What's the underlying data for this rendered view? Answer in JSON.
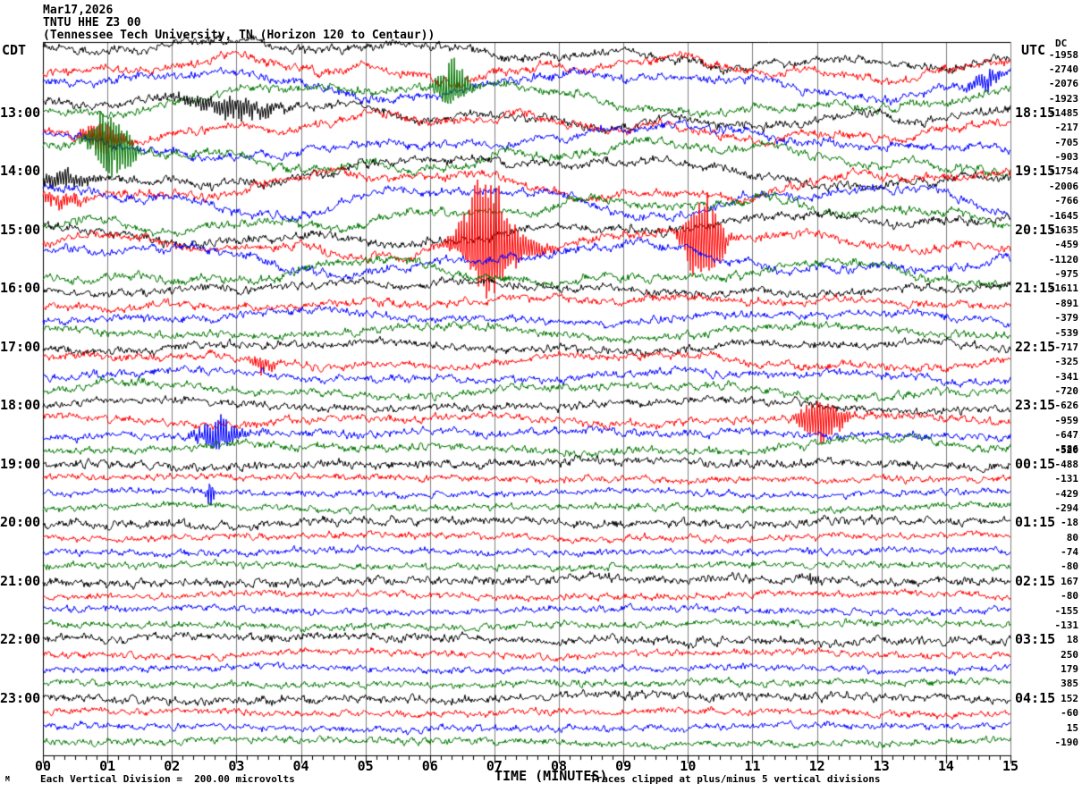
{
  "title": {
    "line1": "Mar17,2026",
    "line2": "TNTU HHE Z3 00",
    "line3": "(Tennessee Tech University, TN (Horizon 120 to Centaur))"
  },
  "axes": {
    "left_header": "CDT",
    "right_header": "UTC",
    "dc_header": "DC",
    "x_axis_label": "TIME (MINUTES)",
    "x_tick_labels": [
      "00",
      "01",
      "02",
      "03",
      "04",
      "05",
      "06",
      "07",
      "08",
      "09",
      "10",
      "11",
      "12",
      "13",
      "14",
      "15"
    ],
    "left_time_labels": [
      {
        "row": 4,
        "text": "13:00"
      },
      {
        "row": 8,
        "text": "14:00"
      },
      {
        "row": 12,
        "text": "15:00"
      },
      {
        "row": 16,
        "text": "16:00"
      },
      {
        "row": 20,
        "text": "17:00"
      },
      {
        "row": 24,
        "text": "18:00"
      },
      {
        "row": 28,
        "text": "19:00"
      },
      {
        "row": 32,
        "text": "20:00"
      },
      {
        "row": 36,
        "text": "21:00"
      },
      {
        "row": 40,
        "text": "22:00"
      },
      {
        "row": 44,
        "text": "23:00"
      }
    ],
    "right_time_labels": [
      {
        "row": 4,
        "text": "18:15"
      },
      {
        "row": 8,
        "text": "19:15"
      },
      {
        "row": 12,
        "text": "20:15"
      },
      {
        "row": 16,
        "text": "21:15"
      },
      {
        "row": 20,
        "text": "22:15"
      },
      {
        "row": 24,
        "text": "23:15"
      },
      {
        "row": 28,
        "text": "00:15"
      },
      {
        "row": 32,
        "text": "01:15"
      },
      {
        "row": 36,
        "text": "02:15"
      },
      {
        "row": 40,
        "text": "03:15"
      },
      {
        "row": 44,
        "text": "04:15"
      }
    ],
    "dc_labels": [
      "-1958",
      "-2740",
      "-2076",
      "-1923",
      "-1485",
      "-217",
      "-705",
      "-903",
      "-1754",
      "-2006",
      "-766",
      "-1645",
      "-1635",
      "-459",
      "-1120",
      "-975",
      "-1611",
      "-891",
      "-379",
      "-539",
      "-717",
      "-325",
      "-341",
      "-720",
      "-626",
      "-959",
      "-647",
      "-586",
      "-488",
      "-131",
      "-429",
      "-294",
      "-18",
      "80",
      "-74",
      "-80",
      "167",
      "-80",
      "-155",
      "-131",
      "18",
      "250",
      "179",
      "385",
      "152",
      "-60",
      "15",
      "-190"
    ],
    "dc_overprint": {
      "row": 27,
      "text": "-520"
    }
  },
  "footer": {
    "left": "Each Vertical Division =  200.00 microvolts",
    "right": "Traces clipped at plus/minus 5 vertical divisions",
    "corner_mark": "M"
  },
  "chart_data": {
    "type": "line",
    "subtype": "seismogram-helicorder",
    "title": "TNTU HHE Z3 00 — Mar17,2026",
    "xlabel": "TIME (MINUTES)",
    "x_range_minutes": [
      0,
      15
    ],
    "minor_ticks_per_minute": 6,
    "rows": 48,
    "row_duration_minutes": 15,
    "trace_color_cycle": [
      "#000000",
      "#ff0000",
      "#0000ff",
      "#007700"
    ],
    "grid_color": "#808080",
    "background": "#ffffff",
    "clip_divisions": 5,
    "microvolts_per_division": 200.0,
    "dc_offsets": [
      -1958,
      -2740,
      -2076,
      -1923,
      -1485,
      -217,
      -705,
      -903,
      -1754,
      -2006,
      -766,
      -1645,
      -1635,
      -459,
      -1120,
      -975,
      -1611,
      -891,
      -379,
      -539,
      -717,
      -325,
      -341,
      -720,
      -626,
      -959,
      -647,
      -586,
      -488,
      -131,
      -429,
      -294,
      -18,
      80,
      -74,
      -80,
      167,
      -80,
      -155,
      -131,
      18,
      250,
      179,
      385,
      152,
      -60,
      15,
      -190
    ],
    "noise_zones": [
      {
        "rows": [
          0,
          15
        ],
        "wander": 12,
        "noise": 2.4
      },
      {
        "rows": [
          16,
          23
        ],
        "wander": 5.5,
        "noise": 2.2
      },
      {
        "rows": [
          24,
          27
        ],
        "wander": 4,
        "noise": 2.2
      },
      {
        "rows": [
          28,
          47
        ],
        "wander": 2,
        "noise": 1.9,
        "black_noise": 2.4,
        "black_wander": 3
      }
    ],
    "events": [
      {
        "row": 2,
        "minute": 14.65,
        "amp": 14,
        "sigma": 0.08,
        "type": "burst"
      },
      {
        "row": 3,
        "minute": 6.36,
        "amp": 34,
        "sigma": 0.08,
        "type": "burst"
      },
      {
        "row": 4,
        "minute": 2.95,
        "amp": 14,
        "sigma": 0.25,
        "type": "burst"
      },
      {
        "row": 5,
        "minute": 0.93,
        "amp": 24,
        "sigma": 0.1,
        "type": "burst"
      },
      {
        "row": 7,
        "minute": 1.07,
        "amp": 50,
        "sigma": 0.1,
        "type": "burst"
      },
      {
        "row": 8,
        "minute": 0.3,
        "amp": 12,
        "sigma": 0.15,
        "type": "burst"
      },
      {
        "row": 9,
        "minute": 0.3,
        "amp": 10,
        "sigma": 0.12,
        "type": "burst"
      },
      {
        "row": 13,
        "minute": 6.86,
        "amp": 75,
        "sigma": 0.1,
        "type": "burst"
      },
      {
        "row": 13,
        "minute": 7.05,
        "amp": 26,
        "sigma": 0.22,
        "type": "burst"
      },
      {
        "row": 13,
        "minute": 10.25,
        "amp": 68,
        "sigma": 0.09,
        "type": "burst"
      },
      {
        "row": 21,
        "minute": 3.44,
        "amp": 12,
        "sigma": 0.06,
        "type": "burst"
      },
      {
        "row": 25,
        "minute": 12.06,
        "amp": 30,
        "sigma": 0.11,
        "type": "burst"
      },
      {
        "row": 26,
        "minute": 2.72,
        "amp": 26,
        "sigma": 0.1,
        "type": "burst"
      },
      {
        "row": 27,
        "minute": 11.9,
        "amp": 8,
        "sigma": 0.3,
        "type": "hump"
      },
      {
        "row": 27,
        "minute": 13.3,
        "amp": 9,
        "sigma": 0.25,
        "type": "hump"
      },
      {
        "row": 30,
        "minute": 2.6,
        "amp": 18,
        "sigma": 0.02,
        "type": "burst"
      },
      {
        "row": 36,
        "minute": 11.9,
        "amp": 6,
        "sigma": 0.06,
        "type": "burst"
      }
    ]
  }
}
